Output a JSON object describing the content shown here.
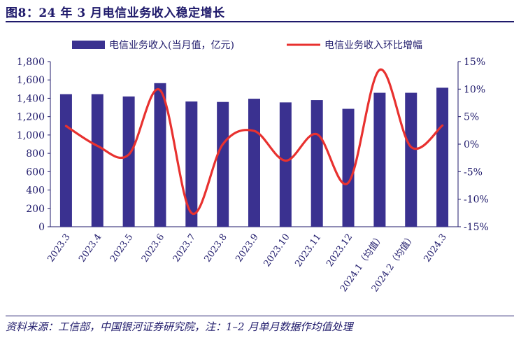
{
  "header": {
    "title": "图8：24 年 3 月电信业务收入稳定增长"
  },
  "footer": {
    "source": "资料来源：工信部，中国银河证券研究院，注：1–2 月单月数据作均值处理"
  },
  "colors": {
    "bar": "#3a3190",
    "line": "#e8312f",
    "text": "#1f1a6b"
  },
  "chart_data": {
    "type": "bar",
    "categories": [
      "2023.3",
      "2023.4",
      "2023.5",
      "2023.6",
      "2023.7",
      "2023.8",
      "2023.9",
      "2023.10",
      "2023.11",
      "2023.12",
      "2024.1（均值）",
      "2024.2（均值）",
      "2024.3"
    ],
    "series": [
      {
        "name": "电信业务收入(当月值，亿元)",
        "type": "bar",
        "axis": "left",
        "values": [
          1445,
          1445,
          1420,
          1565,
          1365,
          1360,
          1395,
          1355,
          1380,
          1285,
          1460,
          1460,
          1515
        ]
      },
      {
        "name": "电信业务收入环比增幅",
        "type": "line",
        "axis": "right",
        "values": [
          3.3,
          -0.3,
          -1.9,
          9.8,
          -12.5,
          0.0,
          2.4,
          -3.0,
          1.8,
          -7.0,
          13.5,
          -0.5,
          3.4
        ]
      }
    ],
    "y_left": {
      "ylim": [
        0,
        1800
      ],
      "ticks": [
        "0",
        "200",
        "400",
        "600",
        "800",
        "1,000",
        "1,200",
        "1,400",
        "1,600",
        "1,800"
      ]
    },
    "y_right": {
      "ylim": [
        -15,
        15
      ],
      "ticks": [
        "-15%",
        "-10%",
        "-5%",
        "0%",
        "5%",
        "10%",
        "15%"
      ]
    },
    "legend": {
      "placement": "top",
      "items": [
        "电信业务收入(当月值，亿元)",
        "电信业务收入环比增幅"
      ]
    },
    "grid": false
  }
}
